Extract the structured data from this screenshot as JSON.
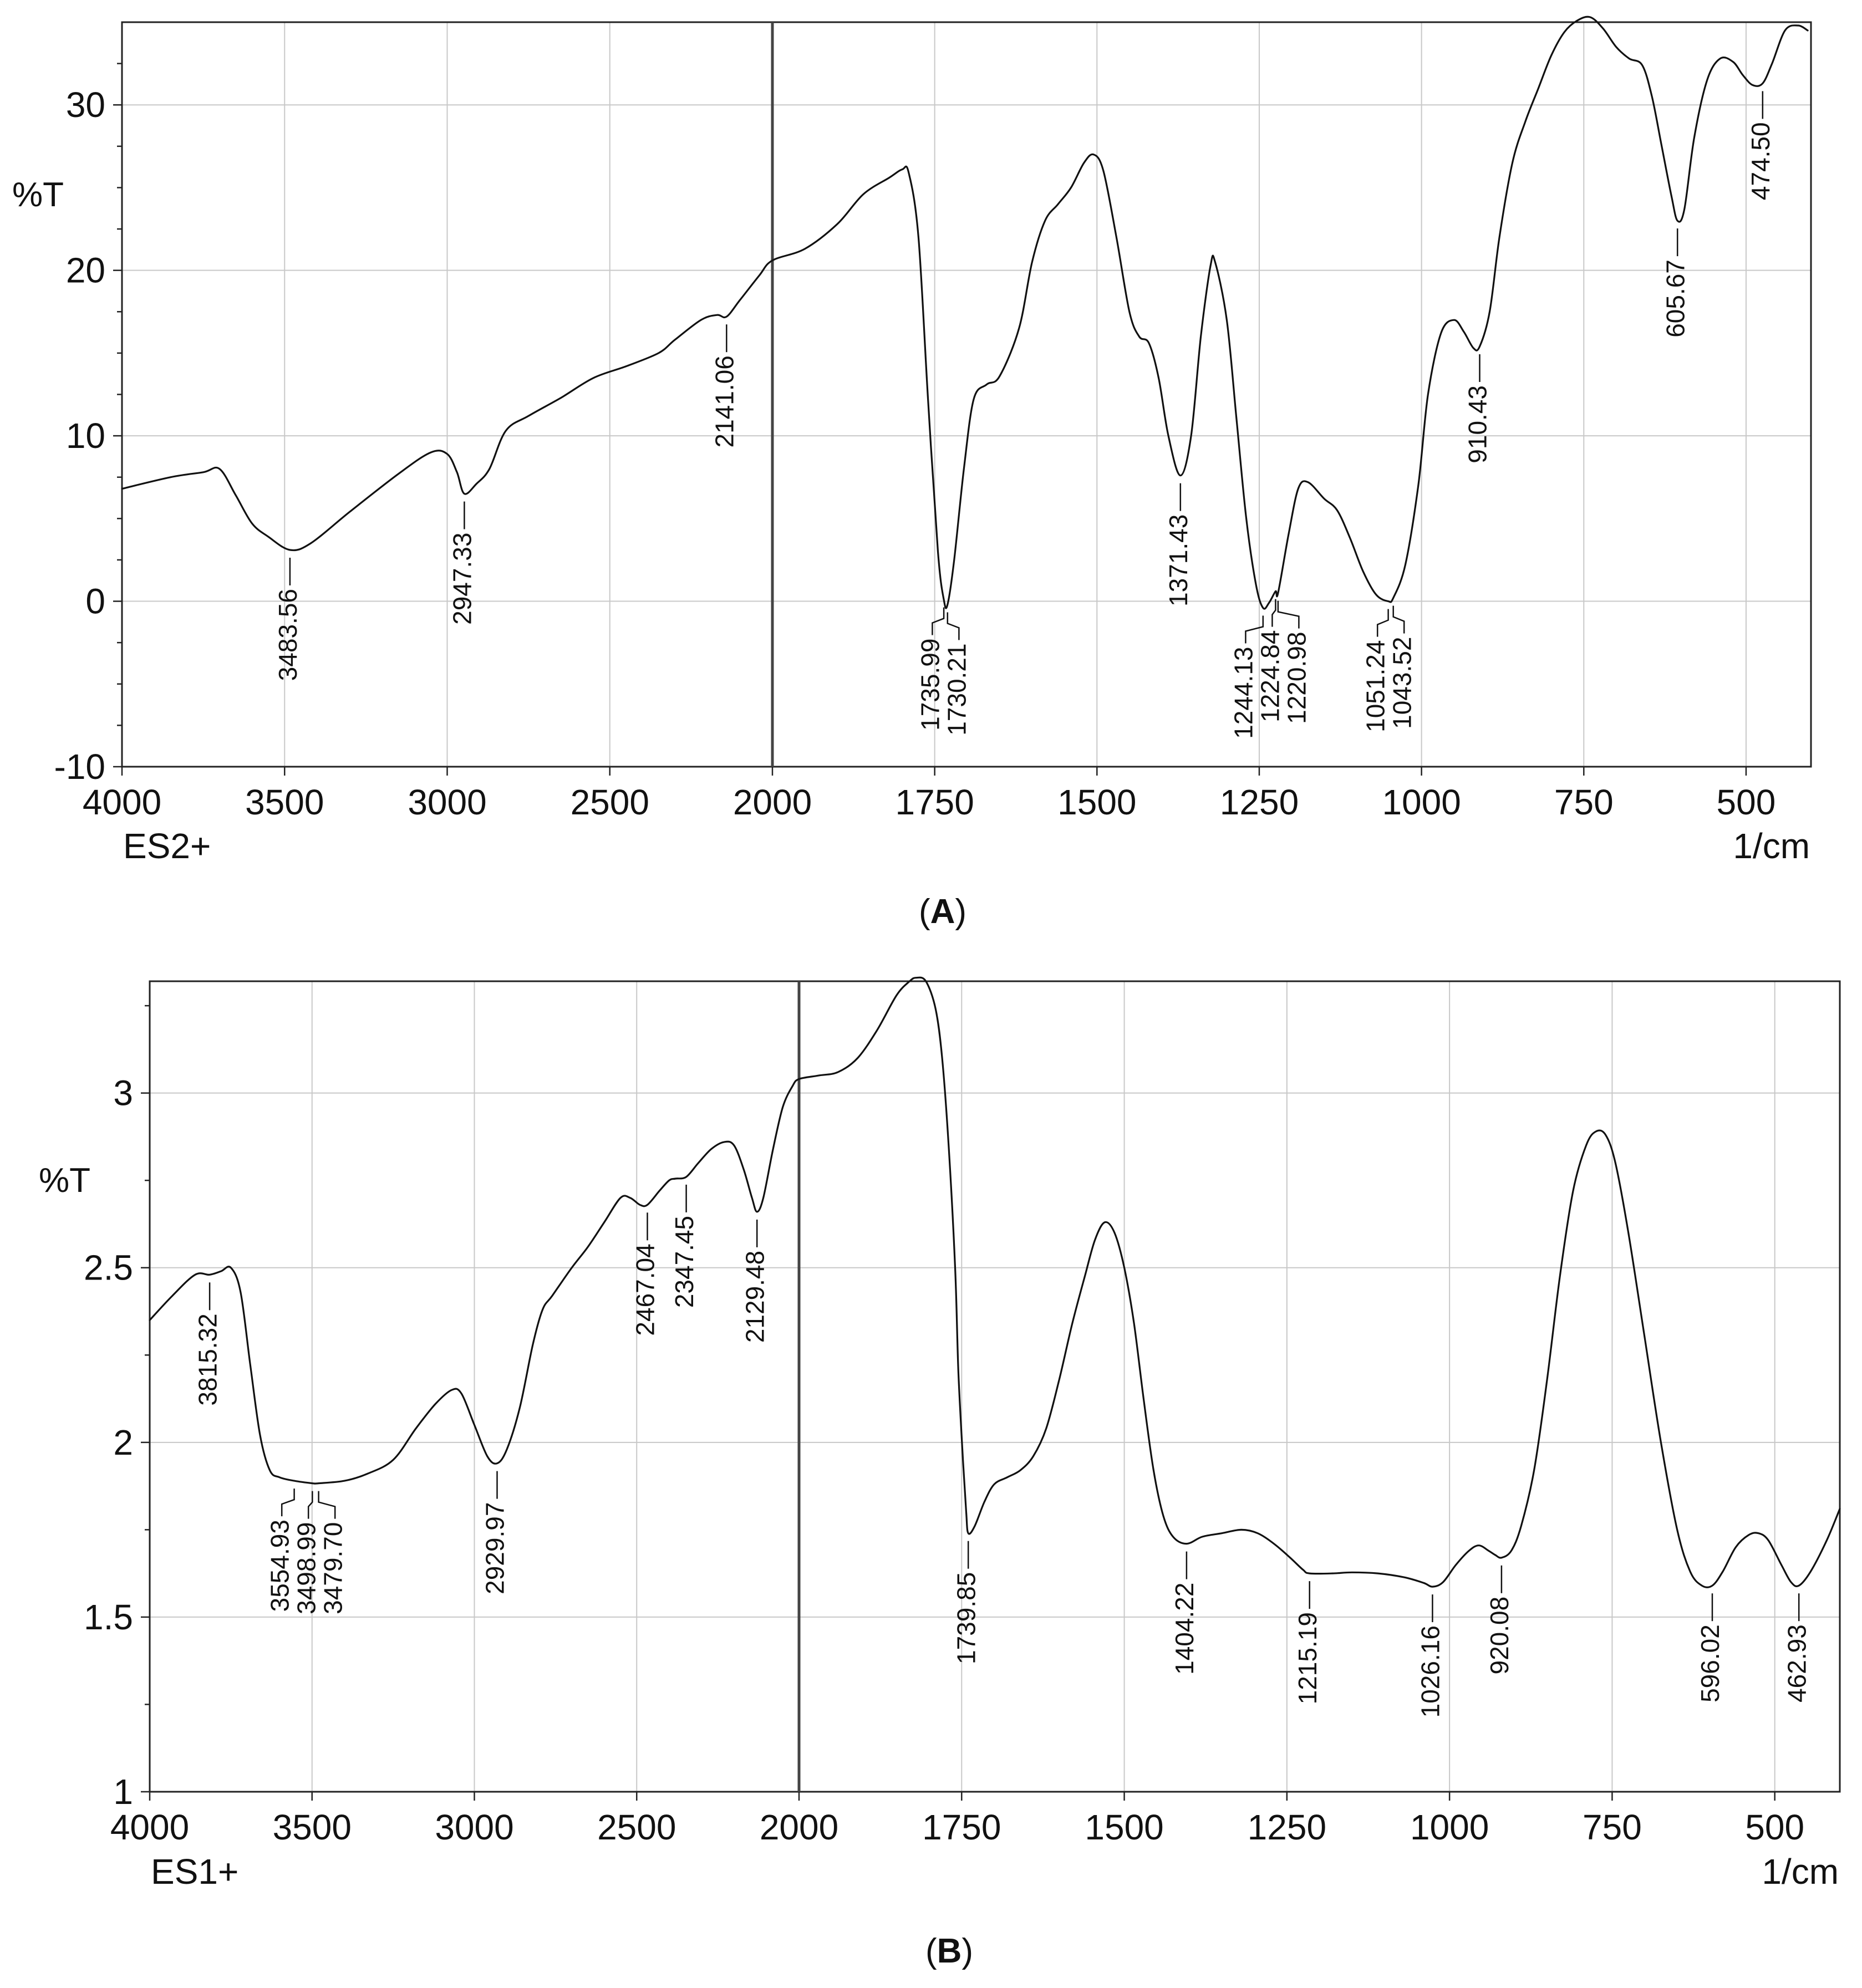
{
  "chart_data": [
    {
      "id": "A",
      "type": "line",
      "caption": "A",
      "ylabel": "%T",
      "xlabel": "1/cm",
      "series_label": "ES2+",
      "xlim": [
        4000,
        400
      ],
      "ylim": [
        -10,
        35
      ],
      "x_break": 2000,
      "x_ticks": [
        4000,
        3500,
        3000,
        2500,
        2000,
        1750,
        1500,
        1250,
        1000,
        750,
        500
      ],
      "x_tick_labels": [
        "4000",
        "3500",
        "3000",
        "2500",
        "2000",
        "1750",
        "1500",
        "1250",
        "1000",
        "750",
        "500"
      ],
      "y_ticks": [
        -10,
        0,
        10,
        20,
        30
      ],
      "y_tick_labels": [
        "-10",
        "0",
        "10",
        "20",
        "30"
      ],
      "y_minor_ticks": [
        -5,
        5,
        15,
        25,
        32.5,
        27.5,
        22.5,
        17.5,
        12.5,
        7.5,
        2.5,
        -2.5,
        -7.5
      ],
      "points": [
        [
          4000,
          6.8
        ],
        [
          3850,
          7.5
        ],
        [
          3750,
          7.8
        ],
        [
          3700,
          8.0
        ],
        [
          3650,
          6.4
        ],
        [
          3600,
          4.7
        ],
        [
          3550,
          3.9
        ],
        [
          3483.56,
          3.1
        ],
        [
          3420,
          3.5
        ],
        [
          3300,
          5.4
        ],
        [
          3150,
          7.7
        ],
        [
          3050,
          9.0
        ],
        [
          3000,
          8.9
        ],
        [
          2970,
          7.8
        ],
        [
          2947.33,
          6.5
        ],
        [
          2910,
          7.1
        ],
        [
          2870,
          8.0
        ],
        [
          2820,
          10.3
        ],
        [
          2750,
          11.2
        ],
        [
          2650,
          12.3
        ],
        [
          2550,
          13.5
        ],
        [
          2450,
          14.2
        ],
        [
          2350,
          15.0
        ],
        [
          2300,
          15.8
        ],
        [
          2220,
          17.0
        ],
        [
          2170,
          17.3
        ],
        [
          2141.06,
          17.2
        ],
        [
          2100,
          18.2
        ],
        [
          2040,
          19.7
        ],
        [
          2000,
          20.6
        ],
        [
          1950,
          21.3
        ],
        [
          1900,
          22.8
        ],
        [
          1860,
          24.6
        ],
        [
          1820,
          25.6
        ],
        [
          1800,
          26.1
        ],
        [
          1790,
          25.9
        ],
        [
          1775,
          22.0
        ],
        [
          1760,
          12.0
        ],
        [
          1745,
          3.0
        ],
        [
          1735.99,
          0.1
        ],
        [
          1730.21,
          -0.2
        ],
        [
          1720,
          2.5
        ],
        [
          1705,
          8.0
        ],
        [
          1690,
          12.2
        ],
        [
          1670,
          13.1
        ],
        [
          1650,
          13.6
        ],
        [
          1620,
          16.5
        ],
        [
          1600,
          20.5
        ],
        [
          1580,
          23.0
        ],
        [
          1560,
          24.0
        ],
        [
          1540,
          25.0
        ],
        [
          1520,
          26.5
        ],
        [
          1505,
          27.0
        ],
        [
          1490,
          26.0
        ],
        [
          1470,
          22.0
        ],
        [
          1450,
          17.5
        ],
        [
          1435,
          16.0
        ],
        [
          1420,
          15.6
        ],
        [
          1405,
          13.5
        ],
        [
          1390,
          10.0
        ],
        [
          1371.43,
          7.6
        ],
        [
          1355,
          10.0
        ],
        [
          1340,
          16.0
        ],
        [
          1325,
          20.3
        ],
        [
          1318,
          20.5
        ],
        [
          1300,
          17.0
        ],
        [
          1285,
          11.0
        ],
        [
          1270,
          5.0
        ],
        [
          1255,
          1.0
        ],
        [
          1244.13,
          -0.4
        ],
        [
          1235,
          -0.1
        ],
        [
          1224.84,
          0.6
        ],
        [
          1220.98,
          0.5
        ],
        [
          1205,
          4.0
        ],
        [
          1190,
          6.8
        ],
        [
          1175,
          7.2
        ],
        [
          1150,
          6.2
        ],
        [
          1130,
          5.5
        ],
        [
          1110,
          3.8
        ],
        [
          1090,
          1.8
        ],
        [
          1070,
          0.4
        ],
        [
          1051.24,
          0.0
        ],
        [
          1043.52,
          0.2
        ],
        [
          1025,
          2.2
        ],
        [
          1005,
          7.0
        ],
        [
          990,
          12.5
        ],
        [
          970,
          16.2
        ],
        [
          950,
          17.0
        ],
        [
          935,
          16.3
        ],
        [
          920,
          15.3
        ],
        [
          910.43,
          15.4
        ],
        [
          895,
          17.5
        ],
        [
          880,
          22.0
        ],
        [
          860,
          26.5
        ],
        [
          840,
          29.0
        ],
        [
          820,
          31.0
        ],
        [
          800,
          33.0
        ],
        [
          780,
          34.4
        ],
        [
          760,
          35.1
        ],
        [
          740,
          35.3
        ],
        [
          720,
          34.6
        ],
        [
          700,
          33.5
        ],
        [
          680,
          32.8
        ],
        [
          660,
          32.4
        ],
        [
          645,
          30.5
        ],
        [
          630,
          27.5
        ],
        [
          615,
          24.5
        ],
        [
          605.67,
          23.0
        ],
        [
          595,
          23.7
        ],
        [
          580,
          28.0
        ],
        [
          560,
          31.5
        ],
        [
          540,
          32.8
        ],
        [
          520,
          32.6
        ],
        [
          505,
          31.8
        ],
        [
          490,
          31.2
        ],
        [
          474.5,
          31.3
        ],
        [
          460,
          32.5
        ],
        [
          440,
          34.5
        ],
        [
          420,
          34.8
        ],
        [
          405,
          34.5
        ]
      ],
      "peaks": [
        {
          "label": "3483.56",
          "x": 3483.56
        },
        {
          "label": "2947.33",
          "x": 2947.33
        },
        {
          "label": "2141.06",
          "x": 2141.06
        },
        {
          "label": "1735.99",
          "x": 1735.99
        },
        {
          "label": "1730.21",
          "x": 1730.21
        },
        {
          "label": "1371.43",
          "x": 1371.43
        },
        {
          "label": "1244.13",
          "x": 1244.13
        },
        {
          "label": "1224.84",
          "x": 1224.84
        },
        {
          "label": "1220.98",
          "x": 1220.98
        },
        {
          "label": "1051.24",
          "x": 1051.24
        },
        {
          "label": "1043.52",
          "x": 1043.52
        },
        {
          "label": "910.43",
          "x": 910.43
        },
        {
          "label": "605.67",
          "x": 605.67
        },
        {
          "label": "474.50",
          "x": 474.5
        }
      ]
    },
    {
      "id": "B",
      "type": "line",
      "caption": "B",
      "ylabel": "%T",
      "xlabel": "1/cm",
      "series_label": "ES1+",
      "xlim": [
        4000,
        400
      ],
      "ylim": [
        1,
        3.32
      ],
      "x_break": 2000,
      "x_ticks": [
        4000,
        3500,
        3000,
        2500,
        2000,
        1750,
        1500,
        1250,
        1000,
        750,
        500
      ],
      "x_tick_labels": [
        "4000",
        "3500",
        "3000",
        "2500",
        "2000",
        "1750",
        "1500",
        "1250",
        "1000",
        "750",
        "500"
      ],
      "y_ticks": [
        1,
        1.5,
        2,
        2.5,
        3
      ],
      "y_tick_labels": [
        "1",
        "1.5",
        "2",
        "2.5",
        "3"
      ],
      "y_minor_ticks": [
        1.25,
        1.75,
        2.25,
        2.75,
        3.25
      ],
      "points": [
        [
          4000,
          2.35
        ],
        [
          3930,
          2.42
        ],
        [
          3860,
          2.48
        ],
        [
          3815.32,
          2.48
        ],
        [
          3780,
          2.49
        ],
        [
          3750,
          2.5
        ],
        [
          3720,
          2.43
        ],
        [
          3690,
          2.22
        ],
        [
          3660,
          2.02
        ],
        [
          3630,
          1.92
        ],
        [
          3600,
          1.9
        ],
        [
          3554.93,
          1.89
        ],
        [
          3498.99,
          1.883
        ],
        [
          3479.7,
          1.883
        ],
        [
          3400,
          1.89
        ],
        [
          3330,
          1.91
        ],
        [
          3250,
          1.95
        ],
        [
          3180,
          2.04
        ],
        [
          3120,
          2.11
        ],
        [
          3070,
          2.15
        ],
        [
          3040,
          2.14
        ],
        [
          3000,
          2.05
        ],
        [
          2960,
          1.96
        ],
        [
          2929.97,
          1.94
        ],
        [
          2900,
          1.98
        ],
        [
          2860,
          2.1
        ],
        [
          2820,
          2.28
        ],
        [
          2790,
          2.38
        ],
        [
          2760,
          2.42
        ],
        [
          2700,
          2.5
        ],
        [
          2650,
          2.56
        ],
        [
          2600,
          2.63
        ],
        [
          2550,
          2.7
        ],
        [
          2520,
          2.7
        ],
        [
          2490,
          2.68
        ],
        [
          2467.04,
          2.68
        ],
        [
          2430,
          2.72
        ],
        [
          2400,
          2.75
        ],
        [
          2380,
          2.755
        ],
        [
          2347.45,
          2.76
        ],
        [
          2310,
          2.8
        ],
        [
          2270,
          2.84
        ],
        [
          2230,
          2.86
        ],
        [
          2200,
          2.85
        ],
        [
          2170,
          2.78
        ],
        [
          2145,
          2.7
        ],
        [
          2129.48,
          2.66
        ],
        [
          2110,
          2.7
        ],
        [
          2080,
          2.84
        ],
        [
          2050,
          2.96
        ],
        [
          2020,
          3.02
        ],
        [
          2000,
          3.04
        ],
        [
          1970,
          3.05
        ],
        [
          1940,
          3.06
        ],
        [
          1910,
          3.1
        ],
        [
          1880,
          3.18
        ],
        [
          1850,
          3.28
        ],
        [
          1830,
          3.32
        ],
        [
          1820,
          3.33
        ],
        [
          1805,
          3.32
        ],
        [
          1790,
          3.24
        ],
        [
          1780,
          3.1
        ],
        [
          1770,
          2.85
        ],
        [
          1760,
          2.5
        ],
        [
          1755,
          2.2
        ],
        [
          1748,
          1.95
        ],
        [
          1743,
          1.8
        ],
        [
          1739.85,
          1.74
        ],
        [
          1730,
          1.76
        ],
        [
          1715,
          1.83
        ],
        [
          1700,
          1.88
        ],
        [
          1680,
          1.9
        ],
        [
          1660,
          1.92
        ],
        [
          1640,
          1.96
        ],
        [
          1620,
          2.04
        ],
        [
          1600,
          2.18
        ],
        [
          1580,
          2.34
        ],
        [
          1560,
          2.48
        ],
        [
          1545,
          2.58
        ],
        [
          1530,
          2.63
        ],
        [
          1515,
          2.6
        ],
        [
          1500,
          2.5
        ],
        [
          1485,
          2.34
        ],
        [
          1470,
          2.12
        ],
        [
          1455,
          1.92
        ],
        [
          1440,
          1.79
        ],
        [
          1425,
          1.73
        ],
        [
          1404.22,
          1.71
        ],
        [
          1380,
          1.73
        ],
        [
          1350,
          1.74
        ],
        [
          1320,
          1.75
        ],
        [
          1295,
          1.74
        ],
        [
          1270,
          1.71
        ],
        [
          1245,
          1.67
        ],
        [
          1225,
          1.635
        ],
        [
          1215.19,
          1.625
        ],
        [
          1180,
          1.625
        ],
        [
          1150,
          1.628
        ],
        [
          1110,
          1.625
        ],
        [
          1070,
          1.614
        ],
        [
          1040,
          1.598
        ],
        [
          1026.16,
          1.587
        ],
        [
          1010,
          1.6
        ],
        [
          990,
          1.65
        ],
        [
          970,
          1.69
        ],
        [
          955,
          1.705
        ],
        [
          940,
          1.69
        ],
        [
          930,
          1.678
        ],
        [
          920.08,
          1.67
        ],
        [
          905,
          1.69
        ],
        [
          890,
          1.76
        ],
        [
          870,
          1.92
        ],
        [
          850,
          2.18
        ],
        [
          830,
          2.48
        ],
        [
          810,
          2.72
        ],
        [
          790,
          2.85
        ],
        [
          775,
          2.89
        ],
        [
          760,
          2.88
        ],
        [
          745,
          2.8
        ],
        [
          725,
          2.6
        ],
        [
          700,
          2.3
        ],
        [
          675,
          2.0
        ],
        [
          650,
          1.75
        ],
        [
          630,
          1.63
        ],
        [
          612,
          1.59
        ],
        [
          596.02,
          1.59
        ],
        [
          580,
          1.63
        ],
        [
          560,
          1.7
        ],
        [
          540,
          1.735
        ],
        [
          525,
          1.74
        ],
        [
          510,
          1.72
        ],
        [
          490,
          1.65
        ],
        [
          475,
          1.6
        ],
        [
          462.93,
          1.59
        ],
        [
          445,
          1.63
        ],
        [
          420,
          1.72
        ],
        [
          400,
          1.81
        ]
      ],
      "peaks": [
        {
          "label": "3815.32",
          "x": 3815.32
        },
        {
          "label": "3554.93",
          "x": 3554.93
        },
        {
          "label": "3498.99",
          "x": 3498.99
        },
        {
          "label": "3479.70",
          "x": 3479.7
        },
        {
          "label": "2929.97",
          "x": 2929.97
        },
        {
          "label": "2467.04",
          "x": 2467.04
        },
        {
          "label": "2347.45",
          "x": 2347.45
        },
        {
          "label": "2129.48",
          "x": 2129.48
        },
        {
          "label": "1739.85",
          "x": 1739.85
        },
        {
          "label": "1404.22",
          "x": 1404.22
        },
        {
          "label": "1215.19",
          "x": 1215.19
        },
        {
          "label": "1026.16",
          "x": 1026.16
        },
        {
          "label": "920.08",
          "x": 920.08
        },
        {
          "label": "596.02",
          "x": 596.02
        },
        {
          "label": "462.93",
          "x": 462.93
        }
      ]
    }
  ]
}
